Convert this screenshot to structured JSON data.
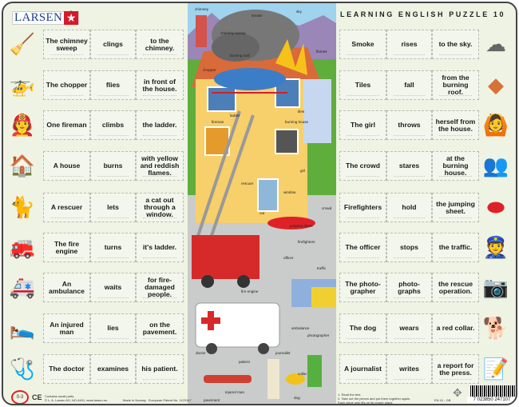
{
  "header": {
    "brand": "LARSEN",
    "title": "LEARNING ENGLISH PUZZLE 10"
  },
  "left_rows": [
    {
      "icon": "chimney-sweep-icon",
      "words": [
        "The chimney sweep",
        "clings",
        "to the chimney."
      ]
    },
    {
      "icon": "helicopter-icon",
      "words": [
        "The chopper",
        "flies",
        "in front of the house."
      ]
    },
    {
      "icon": "fireman-ladder-icon",
      "words": [
        "One fireman",
        "climbs",
        "the ladder."
      ]
    },
    {
      "icon": "house-icon",
      "words": [
        "A house",
        "burns",
        "with yellow and reddish flames."
      ]
    },
    {
      "icon": "rescuer-icon",
      "words": [
        "A rescuer",
        "lets",
        "a cat out through a window."
      ]
    },
    {
      "icon": "fire-engine-icon",
      "words": [
        "The fire engine",
        "turns",
        "it's ladder."
      ]
    },
    {
      "icon": "ambulance-icon",
      "words": [
        "An ambulance",
        "waits",
        "for fire-damaged people."
      ]
    },
    {
      "icon": "injured-man-icon",
      "words": [
        "An injured man",
        "lies",
        "on the pavement."
      ]
    },
    {
      "icon": "doctor-icon",
      "words": [
        "The doctor",
        "examines",
        "his patient."
      ]
    }
  ],
  "right_rows": [
    {
      "icon": "smoke-icon",
      "words": [
        "Smoke",
        "rises",
        "to the sky."
      ]
    },
    {
      "icon": "tiles-icon",
      "words": [
        "Tiles",
        "fall",
        "from the burning roof."
      ]
    },
    {
      "icon": "girl-icon",
      "words": [
        "The girl",
        "throws",
        "herself from the house."
      ]
    },
    {
      "icon": "crowd-icon",
      "words": [
        "The crowd",
        "stares",
        "at the burning house."
      ]
    },
    {
      "icon": "firefighters-icon",
      "words": [
        "Firefighters",
        "hold",
        "the jumping sheet."
      ]
    },
    {
      "icon": "officer-icon",
      "words": [
        "The officer",
        "stops",
        "the traffic."
      ]
    },
    {
      "icon": "photographer-icon",
      "words": [
        "The photo-grapher",
        "photo-graphs",
        "the rescue operation."
      ]
    },
    {
      "icon": "dog-icon",
      "words": [
        "The dog",
        "wears",
        "a red collar."
      ]
    },
    {
      "icon": "journalist-icon",
      "words": [
        "A journalist",
        "writes",
        "a report for the press."
      ]
    }
  ],
  "scene_labels": [
    "chimney",
    "smoke",
    "sky",
    "chimney sweep",
    "burning roof",
    "flames",
    "chopper",
    "tiles",
    "ladder",
    "fireman",
    "burning house",
    "girl",
    "rescuer",
    "window",
    "crowd",
    "cat",
    "jumping sheet",
    "firefighters",
    "officer",
    "traffic",
    "fire engine",
    "ambulance",
    "photographer",
    "doctor",
    "journalist",
    "patient",
    "collar",
    "injured man",
    "dog",
    "pavement"
  ],
  "footer": {
    "warning": "Contains small parts.",
    "copyright": "© L. A. Larsen AS, NO-4401, www.larsen.eu",
    "made_in": "Made in Norway",
    "patent": "European Patent No. 1123147",
    "instructions": [
      "1. Read the text.",
      "2. Take out the pieces and put them together again.",
      "Each piece only fits on its proper place."
    ],
    "code": "EN 10 - GB",
    "barcode": "7 023850 247107",
    "age_warning": "0-3"
  },
  "colors": {
    "board": "#eef3e3",
    "brand_blue": "#1d3f8f",
    "brand_red": "#d7192a",
    "border": "#444444"
  }
}
